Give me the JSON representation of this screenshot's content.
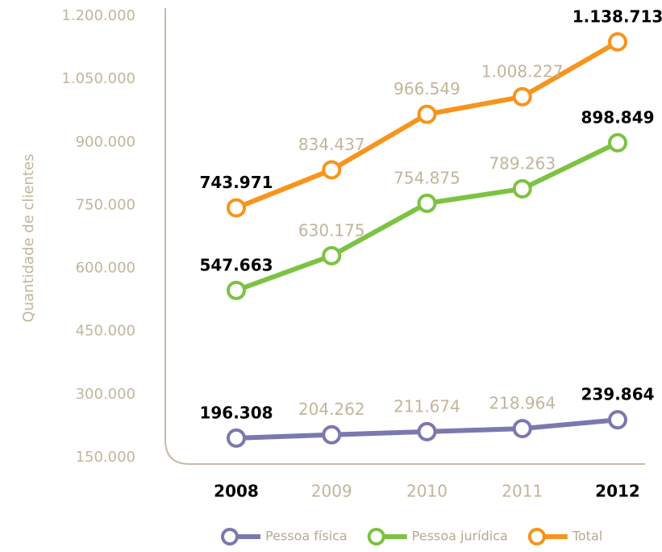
{
  "chart_data": {
    "type": "line",
    "y_label": "Quantidade de clientes",
    "categories": [
      "2008",
      "2009",
      "2010",
      "2011",
      "2012"
    ],
    "series": [
      {
        "name": "Pessoa física",
        "color": "#7b78b0",
        "values": [
          196308,
          204262,
          211674,
          218964,
          239864
        ],
        "value_labels": [
          "196.308",
          "204.262",
          "211.674",
          "218.964",
          "239.864"
        ]
      },
      {
        "name": "Pessoa jurídica",
        "color": "#7dc242",
        "values": [
          547663,
          630175,
          754875,
          789263,
          898849
        ],
        "value_labels": [
          "547.663",
          "630.175",
          "754.875",
          "789.263",
          "898.849"
        ]
      },
      {
        "name": "Total",
        "color": "#f7941d",
        "values": [
          743971,
          834437,
          966549,
          1008227,
          1138713
        ],
        "value_labels": [
          "743.971",
          "834.437",
          "966.549",
          "1.008.227",
          "1.138.713"
        ]
      }
    ],
    "ylim": [
      150000,
      1200000
    ],
    "yticks": [
      {
        "value": 150000,
        "label": "150.000"
      },
      {
        "value": 300000,
        "label": "300.000"
      },
      {
        "value": 450000,
        "label": "450.000"
      },
      {
        "value": 600000,
        "label": "600.000"
      },
      {
        "value": 750000,
        "label": "750.000"
      },
      {
        "value": 900000,
        "label": "900.000"
      },
      {
        "value": 1050000,
        "label": "1.050.000"
      },
      {
        "value": 1200000,
        "label": "1.200.000"
      }
    ],
    "legend": "bottom"
  }
}
